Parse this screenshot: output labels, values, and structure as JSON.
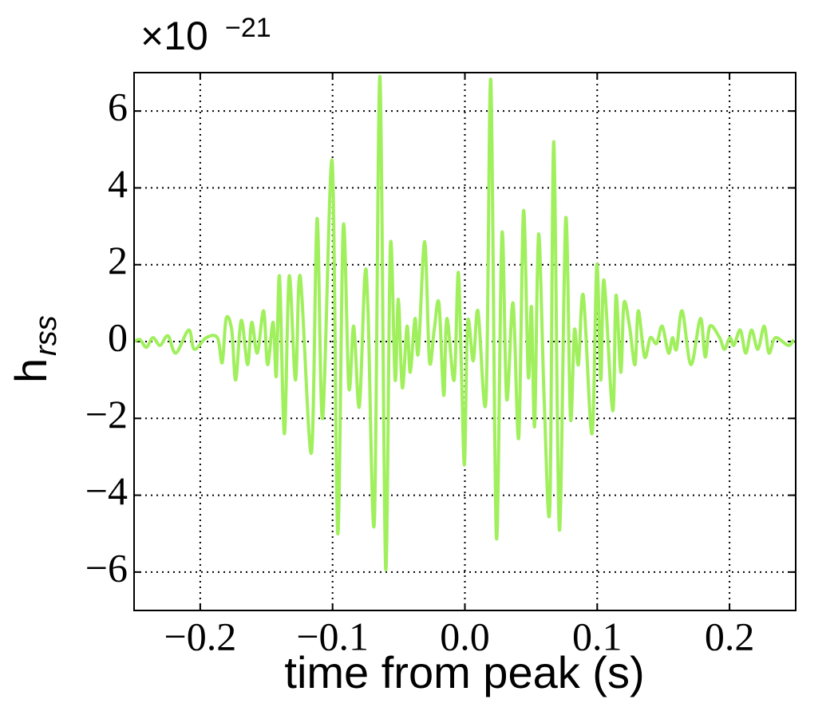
{
  "chart_data": {
    "type": "line",
    "xlabel": "time from peak (s)",
    "ylabel": {
      "text": "h",
      "subscript": "rss"
    },
    "y_offset": {
      "base": "×10",
      "exponent": "−21"
    },
    "xlim": [
      -0.25,
      0.25
    ],
    "ylim": [
      -7,
      7
    ],
    "xticks": [
      {
        "value": -0.2,
        "label": "−0.2"
      },
      {
        "value": -0.1,
        "label": "−0.1"
      },
      {
        "value": 0,
        "label": "0.0"
      },
      0.1,
      0.2
    ],
    "yticks": [
      {
        "value": -6,
        "label": "−6"
      },
      {
        "value": -4,
        "label": "−4"
      },
      {
        "value": -2,
        "label": "−2"
      },
      0,
      2,
      4,
      6
    ],
    "grid": true,
    "series": [
      {
        "color": "#a0ef5c",
        "x": [
          -0.25,
          -0.2455,
          -0.2407,
          -0.2358,
          -0.2304,
          -0.2244,
          -0.2184,
          -0.2087,
          -0.2045,
          -0.1955,
          -0.187,
          -0.1834,
          -0.1804,
          -0.1762,
          -0.1732,
          -0.169,
          -0.1642,
          -0.1611,
          -0.1569,
          -0.1521,
          -0.1491,
          -0.1449,
          -0.1425,
          -0.1401,
          -0.1364,
          -0.1328,
          -0.128,
          -0.1244,
          -0.116,
          -0.1117,
          -0.1075,
          -0.1003,
          -0.0961,
          -0.0919,
          -0.0877,
          -0.084,
          -0.0798,
          -0.0756,
          -0.0732,
          -0.0684,
          -0.0642,
          -0.0599,
          -0.0563,
          -0.0527,
          -0.0503,
          -0.0473,
          -0.0437,
          -0.0413,
          -0.0377,
          -0.0352,
          -0.0304,
          -0.0268,
          -0.0232,
          -0.0196,
          -0.016,
          -0.0136,
          -0.0081,
          -0.0051,
          -0.0027,
          -0.0003,
          0.0021,
          0.0063,
          0.0099,
          0.016,
          0.0196,
          0.0238,
          0.028,
          0.0316,
          0.0364,
          0.0407,
          0.0443,
          0.0479,
          0.0503,
          0.0527,
          0.0557,
          0.0599,
          0.0642,
          0.0672,
          0.0714,
          0.0762,
          0.0798,
          0.0828,
          0.0858,
          0.0895,
          0.0961,
          0.0997,
          0.1027,
          0.1051,
          0.1117,
          0.1142,
          0.1178,
          0.1202,
          0.1244,
          0.1286,
          0.131,
          0.1358,
          0.1401,
          0.1449,
          0.1491,
          0.1539,
          0.1569,
          0.1599,
          0.1642,
          0.1708,
          0.178,
          0.1816,
          0.1852,
          0.1925,
          0.1961,
          0.2003,
          0.2033,
          0.2081,
          0.2123,
          0.2166,
          0.2214,
          0.2262,
          0.2298,
          0.2346,
          0.2443,
          0.2485
        ],
        "values": [
          0,
          0.05,
          -0.15,
          0.1,
          -0.1,
          0.15,
          -0.3,
          0.3,
          -0.2,
          0.1,
          0.1,
          -0.55,
          0.6,
          0.3,
          -1.0,
          0.55,
          -0.6,
          0.5,
          -0.3,
          0.8,
          -0.6,
          0.5,
          -0.9,
          1.7,
          -2.4,
          1.7,
          -1.0,
          1.7,
          -2.9,
          3.2,
          -2.0,
          4.7,
          -5.0,
          3.0,
          -1.2,
          0.4,
          -1.7,
          1.7,
          0.8,
          -4.7,
          6.9,
          -5.9,
          2.5,
          -1.0,
          1.1,
          -1.2,
          0.4,
          -0.8,
          0.6,
          -0.3,
          2.6,
          -0.5,
          0.3,
          1.0,
          -1.4,
          0.6,
          -1.0,
          1.8,
          -0.6,
          -3.2,
          0.5,
          -0.5,
          0.8,
          -1.5,
          6.8,
          -5.1,
          2.8,
          -1.5,
          1.0,
          -2.5,
          3.4,
          -0.9,
          0.9,
          -2.2,
          2.8,
          -1.5,
          -4.3,
          5.2,
          -4.9,
          3.2,
          -2.0,
          0.3,
          -0.6,
          1.2,
          -2.4,
          2.0,
          -1.0,
          1.6,
          -1.8,
          1.2,
          -0.8,
          1.0,
          0.4,
          -0.6,
          0.8,
          -0.4,
          0.1,
          -0.05,
          0.4,
          -0.3,
          0.1,
          -0.2,
          0.8,
          -0.6,
          0.6,
          -0.4,
          0.4,
          0.1,
          -0.2,
          0.1,
          -0.1,
          0.3,
          -0.3,
          0.3,
          -0.2,
          0.4,
          -0.3,
          0.1,
          -0.1,
          0.05
        ]
      }
    ]
  }
}
